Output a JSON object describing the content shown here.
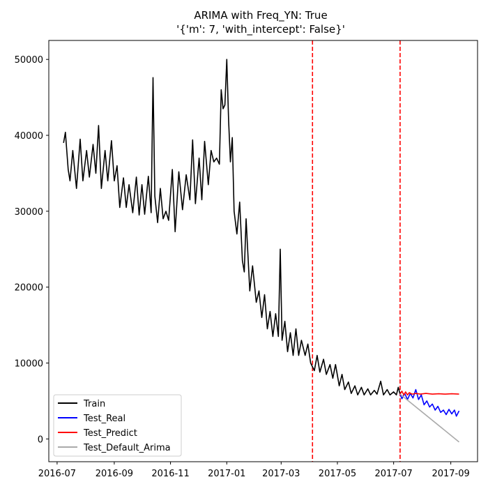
{
  "chart_data": {
    "type": "line",
    "title_line1": "ARIMA with Freq_YN: True",
    "title_line2": "'{'m': 7, 'with_intercept': False}'",
    "xlabel": "",
    "ylabel": "",
    "x_range": [
      "2016-06-22",
      "2017-09-30"
    ],
    "ylim": [
      -3000,
      52500
    ],
    "y_ticks": [
      0,
      10000,
      20000,
      30000,
      40000,
      50000
    ],
    "x_ticks": [
      {
        "date": "2016-07-01",
        "label": "2016-07"
      },
      {
        "date": "2016-09-01",
        "label": "2016-09"
      },
      {
        "date": "2016-11-01",
        "label": "2016-11"
      },
      {
        "date": "2017-01-01",
        "label": "2017-01"
      },
      {
        "date": "2017-03-01",
        "label": "2017-03"
      },
      {
        "date": "2017-05-01",
        "label": "2017-05"
      },
      {
        "date": "2017-07-01",
        "label": "2017-07"
      },
      {
        "date": "2017-09-01",
        "label": "2017-09"
      }
    ],
    "vlines": [
      {
        "date": "2017-04-04",
        "color": "#ff0000",
        "style": "dashed"
      },
      {
        "date": "2017-07-08",
        "color": "#ff0000",
        "style": "dashed"
      }
    ],
    "legend_position": "lower-left",
    "series": [
      {
        "name": "Train",
        "color": "#000000",
        "points": [
          [
            "2016-07-08",
            39000
          ],
          [
            "2016-07-10",
            40400
          ],
          [
            "2016-07-13",
            35500
          ],
          [
            "2016-07-15",
            34000
          ],
          [
            "2016-07-18",
            38000
          ],
          [
            "2016-07-22",
            33000
          ],
          [
            "2016-07-26",
            39500
          ],
          [
            "2016-07-29",
            34000
          ],
          [
            "2016-08-02",
            38000
          ],
          [
            "2016-08-05",
            34500
          ],
          [
            "2016-08-09",
            38800
          ],
          [
            "2016-08-12",
            35000
          ],
          [
            "2016-08-15",
            41300
          ],
          [
            "2016-08-18",
            33000
          ],
          [
            "2016-08-22",
            38000
          ],
          [
            "2016-08-25",
            34000
          ],
          [
            "2016-08-29",
            39300
          ],
          [
            "2016-09-01",
            34000
          ],
          [
            "2016-09-04",
            36000
          ],
          [
            "2016-09-07",
            30500
          ],
          [
            "2016-09-11",
            34400
          ],
          [
            "2016-09-14",
            30500
          ],
          [
            "2016-09-17",
            33500
          ],
          [
            "2016-09-21",
            29800
          ],
          [
            "2016-09-25",
            34500
          ],
          [
            "2016-09-28",
            29500
          ],
          [
            "2016-10-01",
            33500
          ],
          [
            "2016-10-04",
            29600
          ],
          [
            "2016-10-08",
            34600
          ],
          [
            "2016-10-11",
            29800
          ],
          [
            "2016-10-13",
            47600
          ],
          [
            "2016-10-15",
            32000
          ],
          [
            "2016-10-18",
            28500
          ],
          [
            "2016-10-21",
            33000
          ],
          [
            "2016-10-24",
            29000
          ],
          [
            "2016-10-27",
            30000
          ],
          [
            "2016-10-30",
            28800
          ],
          [
            "2016-11-03",
            35500
          ],
          [
            "2016-11-06",
            27300
          ],
          [
            "2016-11-10",
            35200
          ],
          [
            "2016-11-14",
            30200
          ],
          [
            "2016-11-18",
            34800
          ],
          [
            "2016-11-22",
            31500
          ],
          [
            "2016-11-25",
            39400
          ],
          [
            "2016-11-28",
            31000
          ],
          [
            "2016-12-02",
            37000
          ],
          [
            "2016-12-05",
            31500
          ],
          [
            "2016-12-08",
            39200
          ],
          [
            "2016-12-12",
            33500
          ],
          [
            "2016-12-15",
            38000
          ],
          [
            "2016-12-18",
            36500
          ],
          [
            "2016-12-21",
            37000
          ],
          [
            "2016-12-24",
            36200
          ],
          [
            "2016-12-26",
            46000
          ],
          [
            "2016-12-28",
            43500
          ],
          [
            "2016-12-30",
            44000
          ],
          [
            "2017-01-01",
            50000
          ],
          [
            "2017-01-03",
            42000
          ],
          [
            "2017-01-05",
            36500
          ],
          [
            "2017-01-07",
            39700
          ],
          [
            "2017-01-09",
            30000
          ],
          [
            "2017-01-12",
            27000
          ],
          [
            "2017-01-15",
            31200
          ],
          [
            "2017-01-18",
            23500
          ],
          [
            "2017-01-20",
            22000
          ],
          [
            "2017-01-22",
            29000
          ],
          [
            "2017-01-26",
            19500
          ],
          [
            "2017-01-29",
            22800
          ],
          [
            "2017-02-02",
            18000
          ],
          [
            "2017-02-05",
            19500
          ],
          [
            "2017-02-08",
            16000
          ],
          [
            "2017-02-11",
            19000
          ],
          [
            "2017-02-14",
            14500
          ],
          [
            "2017-02-17",
            16800
          ],
          [
            "2017-02-20",
            13500
          ],
          [
            "2017-02-23",
            16500
          ],
          [
            "2017-02-26",
            13500
          ],
          [
            "2017-02-28",
            25000
          ],
          [
            "2017-03-02",
            13000
          ],
          [
            "2017-03-05",
            15500
          ],
          [
            "2017-03-08",
            11500
          ],
          [
            "2017-03-11",
            14000
          ],
          [
            "2017-03-14",
            11000
          ],
          [
            "2017-03-17",
            14500
          ],
          [
            "2017-03-20",
            11000
          ],
          [
            "2017-03-23",
            13000
          ],
          [
            "2017-03-27",
            11000
          ],
          [
            "2017-03-30",
            12500
          ],
          [
            "2017-04-02",
            10000
          ],
          [
            "2017-04-06",
            9000
          ],
          [
            "2017-04-09",
            11000
          ],
          [
            "2017-04-12",
            8800
          ],
          [
            "2017-04-16",
            10500
          ],
          [
            "2017-04-19",
            8500
          ],
          [
            "2017-04-23",
            9800
          ],
          [
            "2017-04-26",
            8000
          ],
          [
            "2017-04-29",
            9800
          ],
          [
            "2017-05-03",
            7000
          ],
          [
            "2017-05-06",
            8500
          ],
          [
            "2017-05-09",
            6500
          ],
          [
            "2017-05-13",
            7500
          ],
          [
            "2017-05-16",
            6000
          ],
          [
            "2017-05-20",
            7000
          ],
          [
            "2017-05-23",
            5800
          ],
          [
            "2017-05-27",
            6800
          ],
          [
            "2017-05-30",
            5800
          ],
          [
            "2017-06-03",
            6600
          ],
          [
            "2017-06-06",
            5800
          ],
          [
            "2017-06-10",
            6400
          ],
          [
            "2017-06-13",
            5900
          ],
          [
            "2017-06-17",
            7600
          ],
          [
            "2017-06-20",
            5800
          ],
          [
            "2017-06-24",
            6500
          ],
          [
            "2017-06-27",
            5800
          ],
          [
            "2017-07-01",
            6200
          ],
          [
            "2017-07-04",
            5800
          ],
          [
            "2017-07-06",
            6800
          ],
          [
            "2017-07-08",
            5900
          ]
        ]
      },
      {
        "name": "Test_Real",
        "color": "#0000ff",
        "points": [
          [
            "2017-07-08",
            5900
          ],
          [
            "2017-07-10",
            5300
          ],
          [
            "2017-07-13",
            6000
          ],
          [
            "2017-07-16",
            5200
          ],
          [
            "2017-07-19",
            6000
          ],
          [
            "2017-07-22",
            5400
          ],
          [
            "2017-07-25",
            6500
          ],
          [
            "2017-07-28",
            5200
          ],
          [
            "2017-07-31",
            5800
          ],
          [
            "2017-08-03",
            4500
          ],
          [
            "2017-08-06",
            5000
          ],
          [
            "2017-08-09",
            4200
          ],
          [
            "2017-08-12",
            4600
          ],
          [
            "2017-08-15",
            3800
          ],
          [
            "2017-08-18",
            4300
          ],
          [
            "2017-08-21",
            3500
          ],
          [
            "2017-08-24",
            3800
          ],
          [
            "2017-08-27",
            3200
          ],
          [
            "2017-08-30",
            3900
          ],
          [
            "2017-09-02",
            3300
          ],
          [
            "2017-09-05",
            3800
          ],
          [
            "2017-09-07",
            3000
          ],
          [
            "2017-09-10",
            3700
          ]
        ]
      },
      {
        "name": "Test_Predict",
        "color": "#ff0000",
        "points": [
          [
            "2017-07-08",
            5900
          ],
          [
            "2017-07-10",
            6300
          ],
          [
            "2017-07-12",
            5800
          ],
          [
            "2017-07-14",
            6200
          ],
          [
            "2017-07-16",
            5800
          ],
          [
            "2017-07-18",
            6100
          ],
          [
            "2017-07-21",
            5900
          ],
          [
            "2017-07-25",
            6000
          ],
          [
            "2017-07-30",
            5900
          ],
          [
            "2017-08-05",
            6000
          ],
          [
            "2017-08-12",
            5900
          ],
          [
            "2017-08-19",
            5950
          ],
          [
            "2017-08-26",
            5900
          ],
          [
            "2017-09-02",
            5950
          ],
          [
            "2017-09-10",
            5900
          ]
        ]
      },
      {
        "name": "Test_Default_Arima",
        "color": "#aaaaaa",
        "points": [
          [
            "2017-07-08",
            5900
          ],
          [
            "2017-09-10",
            -400
          ]
        ]
      }
    ]
  }
}
